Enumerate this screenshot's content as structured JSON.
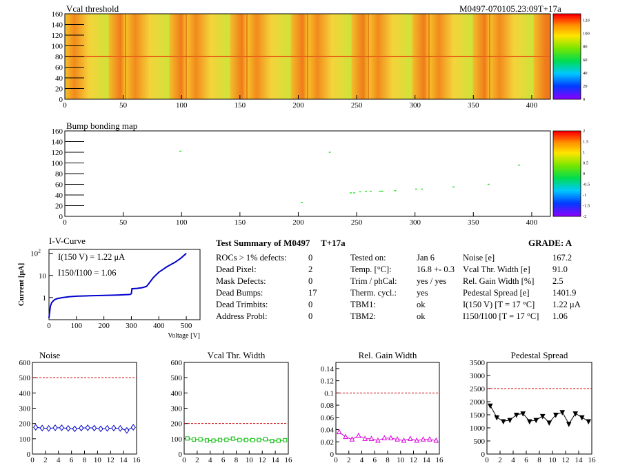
{
  "header": {
    "map1_title": "Vcal threshold",
    "module_id": "M0497-070105.23:09T+17a",
    "map2_title": "Bump bonding map"
  },
  "maps": {
    "xticks": [
      0,
      50,
      100,
      150,
      200,
      250,
      300,
      350,
      400
    ],
    "yticks": [
      0,
      20,
      40,
      60,
      80,
      100,
      120,
      140,
      160
    ],
    "xlim": [
      0,
      416
    ],
    "ylim": [
      0,
      160
    ],
    "palette_top": "#ff0000",
    "palette_mid": "#00dd00",
    "palette_bottom": "#8800ff",
    "vcal_scale": [
      0,
      20,
      40,
      60,
      80,
      100,
      120
    ],
    "bump_scale": [
      "-2",
      "-1.5",
      "-1",
      "-0.5",
      "0",
      "0.5",
      "1",
      "1.5",
      "2"
    ],
    "bump_points": [
      {
        "x": 99,
        "y": 122
      },
      {
        "x": 203,
        "y": 26
      },
      {
        "x": 227,
        "y": 120
      },
      {
        "x": 245,
        "y": 44
      },
      {
        "x": 248,
        "y": 44
      },
      {
        "x": 253,
        "y": 46
      },
      {
        "x": 258,
        "y": 47
      },
      {
        "x": 262,
        "y": 47
      },
      {
        "x": 270,
        "y": 47
      },
      {
        "x": 272,
        "y": 47
      },
      {
        "x": 283,
        "y": 48
      },
      {
        "x": 301,
        "y": 51
      },
      {
        "x": 306,
        "y": 51
      },
      {
        "x": 333,
        "y": 55
      },
      {
        "x": 363,
        "y": 60
      },
      {
        "x": 389,
        "y": 96
      }
    ]
  },
  "iv": {
    "title": "I-V-Curve",
    "ylabel": "Current [μA]",
    "xlabel": "Voltage [V]",
    "xticks": [
      0,
      100,
      200,
      300,
      400,
      500
    ],
    "ylabels": [
      {
        "v": 100,
        "label": "10²"
      },
      {
        "v": 10,
        "label": "10"
      },
      {
        "v": 1,
        "label": "1"
      }
    ],
    "i150": "I(150 V) = 1.22 μA",
    "ratio": "I150/I100 = 1.06",
    "curve": [
      [
        0,
        0.12
      ],
      [
        5,
        0.4
      ],
      [
        10,
        0.6
      ],
      [
        20,
        0.8
      ],
      [
        30,
        0.9
      ],
      [
        50,
        1.0
      ],
      [
        75,
        1.1
      ],
      [
        100,
        1.15
      ],
      [
        150,
        1.2
      ],
      [
        200,
        1.25
      ],
      [
        250,
        1.3
      ],
      [
        295,
        1.38
      ],
      [
        300,
        1.5
      ],
      [
        302,
        2.5
      ],
      [
        320,
        2.6
      ],
      [
        340,
        2.8
      ],
      [
        355,
        3.2
      ],
      [
        365,
        4.5
      ],
      [
        380,
        8.0
      ],
      [
        400,
        14
      ],
      [
        430,
        25
      ],
      [
        460,
        40
      ],
      [
        480,
        60
      ],
      [
        500,
        100
      ]
    ]
  },
  "summary": {
    "title": "Test Summary of M0497",
    "tag": "T+17a",
    "grade": "GRADE:  A",
    "left": [
      {
        "label": "ROCs > 1% defects:",
        "value": "0"
      },
      {
        "label": "Dead Pixel:",
        "value": "2"
      },
      {
        "label": "Mask Defects:",
        "value": "0"
      },
      {
        "label": "Dead Bumps:",
        "value": "17"
      },
      {
        "label": "Dead Trimbits:",
        "value": "0"
      },
      {
        "label": "Address Probl:",
        "value": "0"
      }
    ],
    "mid": [
      {
        "label": "Tested on:",
        "value": "Jan 6"
      },
      {
        "label": "Temp. [°C]:",
        "value": "16.8 +- 0.3"
      },
      {
        "label": "Trim / phCal:",
        "value": "yes / yes"
      },
      {
        "label": "Therm. cycl.:",
        "value": "yes"
      },
      {
        "label": "TBM1:",
        "value": "ok"
      },
      {
        "label": "TBM2:",
        "value": "ok"
      }
    ],
    "right": [
      {
        "label": "Noise [e]",
        "value": "167.2"
      },
      {
        "label": "Vcal Thr. Width [e]",
        "value": "91.0"
      },
      {
        "label": "Rel. Gain Width [%]",
        "value": "2.5"
      },
      {
        "label": "Pedestal Spread [e]",
        "value": "1401.9"
      },
      {
        "label": "I(150 V) [T = 17 °C]",
        "value": "1.22 μA"
      },
      {
        "label": "I150/I100  [T = 17 °C]",
        "value": "1.06"
      }
    ]
  },
  "chart_data": [
    {
      "type": "line",
      "title": "Noise",
      "color": "#0000cc",
      "marker": "diamond",
      "x": [
        0,
        1,
        2,
        3,
        4,
        5,
        6,
        7,
        8,
        9,
        10,
        11,
        12,
        13,
        14,
        15
      ],
      "values": [
        175,
        170,
        168,
        172,
        172,
        168,
        165,
        170,
        172,
        170,
        165,
        168,
        170,
        168,
        155,
        175
      ],
      "ylim": [
        0,
        600
      ],
      "yticks": [
        0,
        100,
        200,
        300,
        400,
        500,
        600
      ],
      "threshold": 500
    },
    {
      "type": "line",
      "title": "Vcal Thr. Width",
      "color": "#00bb00",
      "marker": "square",
      "x": [
        0,
        1,
        2,
        3,
        4,
        5,
        6,
        7,
        8,
        9,
        10,
        11,
        12,
        13,
        14,
        15
      ],
      "values": [
        102,
        95,
        96,
        89,
        88,
        92,
        93,
        101,
        92,
        92,
        91,
        92,
        97,
        85,
        88,
        91
      ],
      "ylim": [
        0,
        600
      ],
      "yticks": [
        0,
        100,
        200,
        300,
        400,
        500,
        600
      ],
      "threshold": 200
    },
    {
      "type": "line",
      "title": "Rel. Gain Width",
      "color": "#dd00dd",
      "marker": "triangle",
      "x": [
        0,
        1,
        2,
        3,
        4,
        5,
        6,
        7,
        8,
        9,
        10,
        11,
        12,
        13,
        14,
        15
      ],
      "values": [
        0.036,
        0.028,
        0.024,
        0.03,
        0.025,
        0.025,
        0.022,
        0.026,
        0.026,
        0.024,
        0.022,
        0.025,
        0.022,
        0.024,
        0.024,
        0.022
      ],
      "ylim": [
        0,
        0.15
      ],
      "yticks": [
        0,
        0.02,
        0.04,
        0.06,
        0.08,
        0.1,
        0.12,
        0.14
      ],
      "threshold": 0.1
    },
    {
      "type": "line",
      "title": "Pedestal Spread",
      "color": "#000000",
      "marker": "triangle-down",
      "x": [
        0,
        1,
        2,
        3,
        4,
        5,
        6,
        7,
        8,
        9,
        10,
        11,
        12,
        13,
        14,
        15
      ],
      "values": [
        1850,
        1400,
        1250,
        1300,
        1500,
        1550,
        1250,
        1300,
        1450,
        1200,
        1500,
        1600,
        1150,
        1550,
        1400,
        1250
      ],
      "ylim": [
        0,
        3500
      ],
      "yticks": [
        0,
        500,
        1000,
        1500,
        2000,
        2500,
        3000,
        3500
      ],
      "threshold": 2500
    }
  ]
}
